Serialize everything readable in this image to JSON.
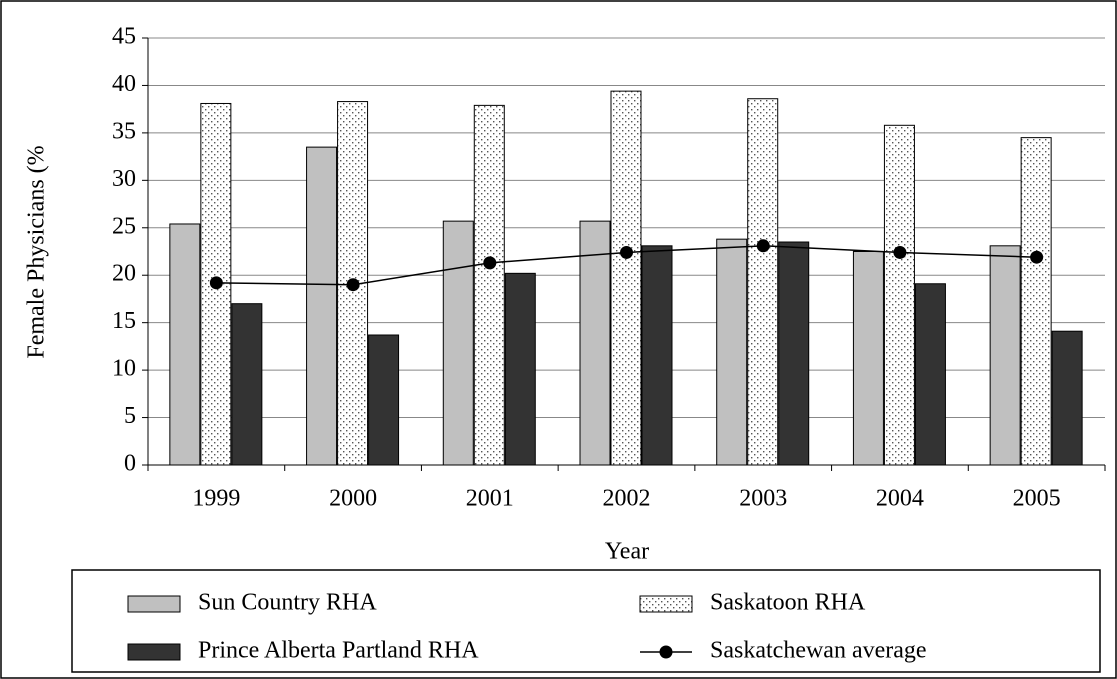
{
  "chart_data": {
    "type": "bar",
    "x_label": "Year",
    "y_label": "Female Physicians (%",
    "categories": [
      "1999",
      "2000",
      "2001",
      "2002",
      "2003",
      "2004",
      "2005"
    ],
    "series": [
      {
        "name": "Sun Country RHA",
        "color": "#c0c0c0",
        "values": [
          25.4,
          33.5,
          25.7,
          25.7,
          23.8,
          22.5,
          23.1
        ]
      },
      {
        "name": "Saskatoon RHA",
        "color": "#ffffff",
        "pattern": "dots",
        "values": [
          38.1,
          38.3,
          37.9,
          39.4,
          38.6,
          35.8,
          34.5
        ]
      },
      {
        "name": "Prince Alberta Partland RHA",
        "color": "#333333",
        "values": [
          17.0,
          13.7,
          20.2,
          23.1,
          23.5,
          19.1,
          14.1
        ]
      },
      {
        "name": "Saskatchewan average",
        "type": "line",
        "color": "#000000",
        "values": [
          19.2,
          19.0,
          21.3,
          22.4,
          23.1,
          22.4,
          21.9
        ]
      }
    ],
    "ylim": [
      0,
      45
    ],
    "yticks": [
      0,
      5,
      10,
      15,
      20,
      25,
      30,
      35,
      40,
      45
    ],
    "grid": true
  }
}
